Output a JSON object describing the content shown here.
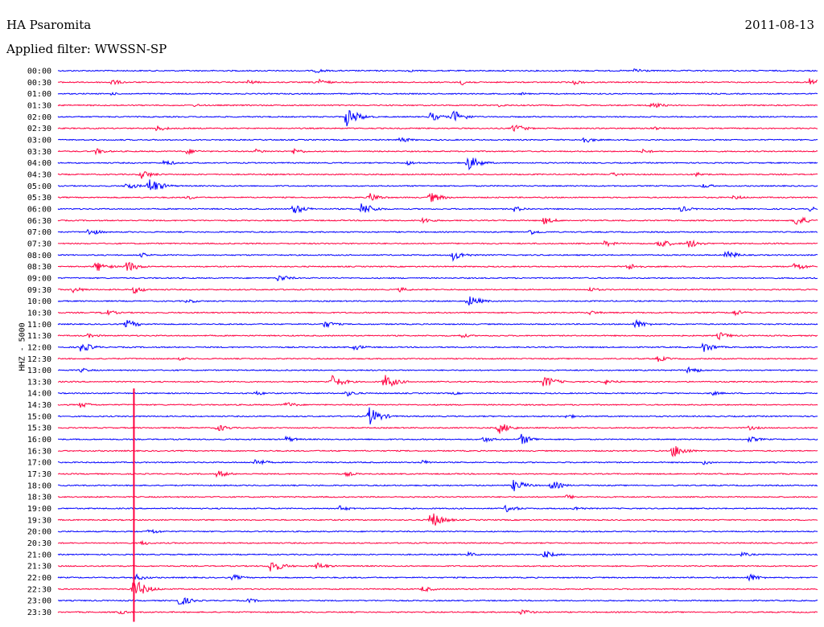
{
  "header": {
    "station": "HA Psaromita",
    "date": "2011-08-13",
    "filter": "Applied filter: WWSSN-SP"
  },
  "chart_data": {
    "type": "line",
    "title": "",
    "ylabel": "HHZ - 5000",
    "colors": [
      "#0000ff",
      "#ff0040"
    ],
    "time_labels": [
      "00:00",
      "00:30",
      "01:00",
      "01:30",
      "02:00",
      "02:30",
      "03:00",
      "03:30",
      "04:00",
      "04:30",
      "05:00",
      "05:30",
      "06:00",
      "06:30",
      "07:00",
      "07:30",
      "08:00",
      "08:30",
      "09:00",
      "09:30",
      "10:00",
      "10:30",
      "11:00",
      "11:30",
      "12:00",
      "12:30",
      "13:00",
      "13:30",
      "14:00",
      "14:30",
      "15:00",
      "15:30",
      "16:00",
      "16:30",
      "17:00",
      "17:30",
      "18:00",
      "18:30",
      "19:00",
      "19:30",
      "20:00",
      "20:30",
      "21:00",
      "21:30",
      "22:00",
      "22:30",
      "23:00",
      "23:30"
    ],
    "events": [
      [
        0,
        0.34,
        3
      ],
      [
        0,
        0.46,
        2
      ],
      [
        0,
        0.76,
        4
      ],
      [
        1,
        0.07,
        4
      ],
      [
        1,
        0.25,
        3
      ],
      [
        1,
        0.34,
        5
      ],
      [
        1,
        0.53,
        4
      ],
      [
        1,
        0.68,
        3
      ],
      [
        1,
        0.99,
        6
      ],
      [
        2,
        0.07,
        2
      ],
      [
        2,
        0.61,
        2
      ],
      [
        3,
        0.18,
        2
      ],
      [
        3,
        0.58,
        2
      ],
      [
        3,
        0.78,
        5
      ],
      [
        4,
        0.38,
        13
      ],
      [
        4,
        0.49,
        6
      ],
      [
        4,
        0.52,
        9
      ],
      [
        5,
        0.13,
        4
      ],
      [
        5,
        0.6,
        6
      ],
      [
        5,
        0.78,
        3
      ],
      [
        6,
        0.45,
        4
      ],
      [
        6,
        0.69,
        5
      ],
      [
        7,
        0.05,
        4
      ],
      [
        7,
        0.17,
        4
      ],
      [
        7,
        0.26,
        3
      ],
      [
        7,
        0.31,
        4
      ],
      [
        7,
        0.77,
        3
      ],
      [
        8,
        0.14,
        4
      ],
      [
        8,
        0.46,
        3
      ],
      [
        8,
        0.54,
        10
      ],
      [
        9,
        0.11,
        6
      ],
      [
        9,
        0.73,
        3
      ],
      [
        9,
        0.84,
        3
      ],
      [
        10,
        0.09,
        5
      ],
      [
        10,
        0.12,
        11
      ],
      [
        10,
        0.85,
        3
      ],
      [
        11,
        0.17,
        3
      ],
      [
        11,
        0.41,
        6
      ],
      [
        11,
        0.49,
        7
      ],
      [
        11,
        0.89,
        3
      ],
      [
        12,
        0.31,
        7
      ],
      [
        12,
        0.4,
        9
      ],
      [
        12,
        0.6,
        4
      ],
      [
        12,
        0.82,
        4
      ],
      [
        12,
        0.99,
        3
      ],
      [
        13,
        0.48,
        4
      ],
      [
        13,
        0.64,
        5
      ],
      [
        13,
        0.97,
        8
      ],
      [
        14,
        0.04,
        5
      ],
      [
        14,
        0.62,
        4
      ],
      [
        15,
        0.72,
        4
      ],
      [
        15,
        0.79,
        7
      ],
      [
        15,
        0.83,
        6
      ],
      [
        16,
        0.11,
        3
      ],
      [
        16,
        0.52,
        7
      ],
      [
        16,
        0.88,
        6
      ],
      [
        17,
        0.05,
        7
      ],
      [
        17,
        0.09,
        8
      ],
      [
        17,
        0.75,
        5
      ],
      [
        17,
        0.97,
        6
      ],
      [
        18,
        0.29,
        5
      ],
      [
        19,
        0.02,
        4
      ],
      [
        19,
        0.1,
        5
      ],
      [
        19,
        0.45,
        3
      ],
      [
        19,
        0.7,
        3
      ],
      [
        20,
        0.17,
        3
      ],
      [
        20,
        0.54,
        8
      ],
      [
        21,
        0.06,
        5
      ],
      [
        21,
        0.7,
        3
      ],
      [
        21,
        0.89,
        4
      ],
      [
        22,
        0.09,
        6
      ],
      [
        22,
        0.35,
        5
      ],
      [
        22,
        0.76,
        6
      ],
      [
        23,
        0.04,
        3
      ],
      [
        23,
        0.53,
        3
      ],
      [
        23,
        0.87,
        5
      ],
      [
        24,
        0.03,
        7
      ],
      [
        24,
        0.39,
        4
      ],
      [
        24,
        0.85,
        7
      ],
      [
        25,
        0.16,
        2
      ],
      [
        25,
        0.79,
        4
      ],
      [
        26,
        0.03,
        3
      ],
      [
        26,
        0.83,
        5
      ],
      [
        27,
        0.36,
        9
      ],
      [
        27,
        0.43,
        10
      ],
      [
        27,
        0.64,
        8
      ],
      [
        27,
        0.72,
        4
      ],
      [
        28,
        0.26,
        3
      ],
      [
        28,
        0.38,
        4
      ],
      [
        28,
        0.52,
        2
      ],
      [
        28,
        0.86,
        3
      ],
      [
        29,
        0.03,
        4
      ],
      [
        29,
        0.3,
        4
      ],
      [
        30,
        0.41,
        12
      ],
      [
        30,
        0.67,
        3
      ],
      [
        31,
        0.21,
        5
      ],
      [
        31,
        0.58,
        8
      ],
      [
        31,
        0.91,
        3
      ],
      [
        32,
        0.3,
        4
      ],
      [
        32,
        0.56,
        4
      ],
      [
        32,
        0.61,
        7
      ],
      [
        32,
        0.91,
        4
      ],
      [
        33,
        0.81,
        9
      ],
      [
        34,
        0.26,
        5
      ],
      [
        34,
        0.48,
        3
      ],
      [
        34,
        0.85,
        3
      ],
      [
        35,
        0.21,
        5
      ],
      [
        35,
        0.38,
        3
      ],
      [
        36,
        0.6,
        8
      ],
      [
        36,
        0.65,
        6
      ],
      [
        37,
        0.67,
        3
      ],
      [
        38,
        0.37,
        4
      ],
      [
        38,
        0.59,
        5
      ],
      [
        38,
        0.68,
        3
      ],
      [
        39,
        0.49,
        12
      ],
      [
        40,
        0.12,
        4
      ],
      [
        41,
        0.11,
        3
      ],
      [
        42,
        0.54,
        3
      ],
      [
        42,
        0.64,
        5
      ],
      [
        42,
        0.9,
        3
      ],
      [
        43,
        0.28,
        9
      ],
      [
        43,
        0.34,
        5
      ],
      [
        44,
        0.1,
        5
      ],
      [
        44,
        0.23,
        4
      ],
      [
        44,
        0.91,
        5
      ],
      [
        45,
        0.1,
        14
      ],
      [
        45,
        0.48,
        4
      ],
      [
        46,
        0.16,
        7
      ],
      [
        46,
        0.25,
        3
      ],
      [
        47,
        0.08,
        3
      ],
      [
        47,
        0.61,
        4
      ]
    ],
    "big_event": {
      "x": 0.1,
      "start_row": 28,
      "end_row": 47
    }
  }
}
